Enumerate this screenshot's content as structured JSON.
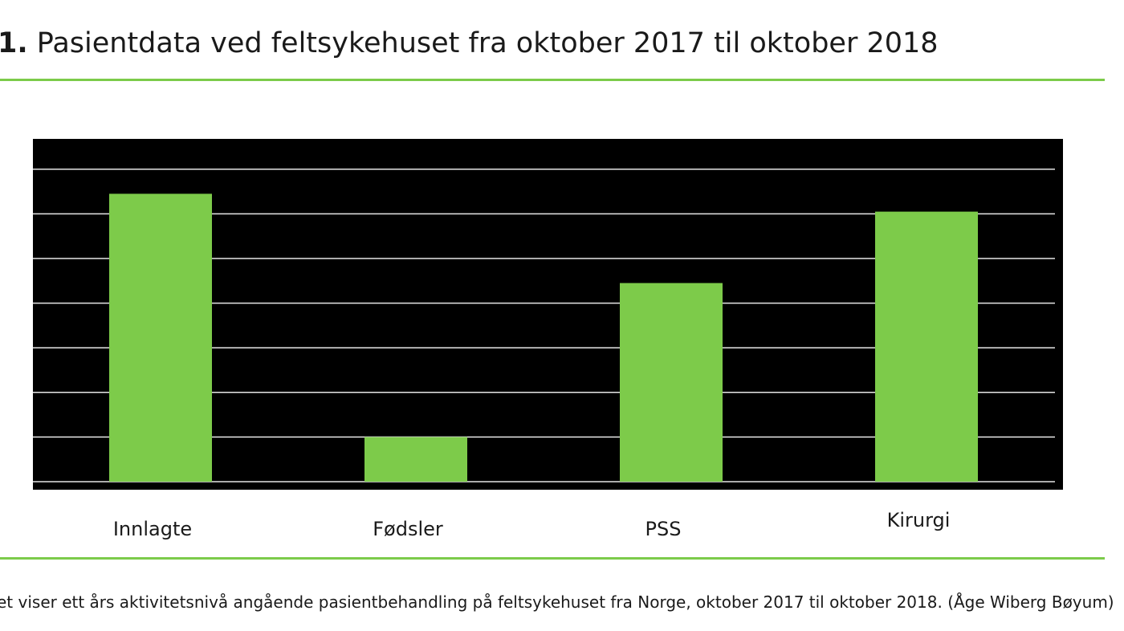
{
  "figure": {
    "number": "1.",
    "title": "Pasientdata ved feltsykehuset fra oktober 2017 til oktober 2018",
    "caption": "et viser ett års aktivitetsnivå angående pasientbehandling på feltsykehuset fra Norge, oktober 2017 til oktober 2018. (Åge Wiberg Bøyum)"
  },
  "colors": {
    "accent": "#7ccb4a",
    "bar": "#7dcb4a",
    "plot_background": "#000000",
    "gridline": "#e6e6e6"
  },
  "chart_data": {
    "type": "bar",
    "categories": [
      "Innlagte",
      "Fødsler",
      "PSS",
      "Kirurgi"
    ],
    "values": [
      6.45,
      1.0,
      4.45,
      6.05
    ],
    "ylim": [
      0,
      7
    ],
    "grid": true,
    "title": "",
    "xlabel": "",
    "ylabel": ""
  }
}
